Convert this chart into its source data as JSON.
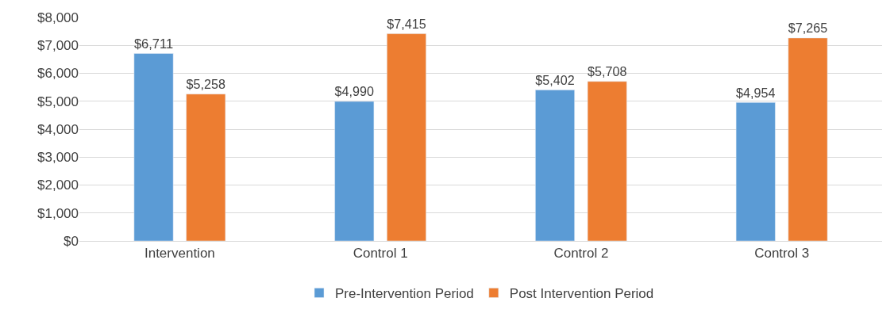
{
  "chart_data": {
    "type": "bar",
    "categories": [
      "Intervention",
      "Control 1",
      "Control 2",
      "Control 3"
    ],
    "series": [
      {
        "name": "Pre-Intervention Period",
        "color": "#5b9bd5",
        "values": [
          6711,
          4990,
          5402,
          4954
        ],
        "value_labels": [
          "$6,711",
          "$4,990",
          "$5,402",
          "$4,954"
        ]
      },
      {
        "name": "Post Intervention Period",
        "color": "#ed7d31",
        "values": [
          5258,
          7415,
          5708,
          7265
        ],
        "value_labels": [
          "$5,258",
          "$7,415",
          "$5,708",
          "$7,265"
        ]
      }
    ],
    "ylim": [
      0,
      8000
    ],
    "yticks": [
      {
        "value": 0,
        "label": "$0"
      },
      {
        "value": 1000,
        "label": "$1,000"
      },
      {
        "value": 2000,
        "label": "$2,000"
      },
      {
        "value": 3000,
        "label": "$3,000"
      },
      {
        "value": 4000,
        "label": "$4,000"
      },
      {
        "value": 5000,
        "label": "$5,000"
      },
      {
        "value": 6000,
        "label": "$6,000"
      },
      {
        "value": 7000,
        "label": "$7,000"
      },
      {
        "value": 8000,
        "label": "$8,000"
      }
    ],
    "grid": "y",
    "legend": "bottom"
  }
}
